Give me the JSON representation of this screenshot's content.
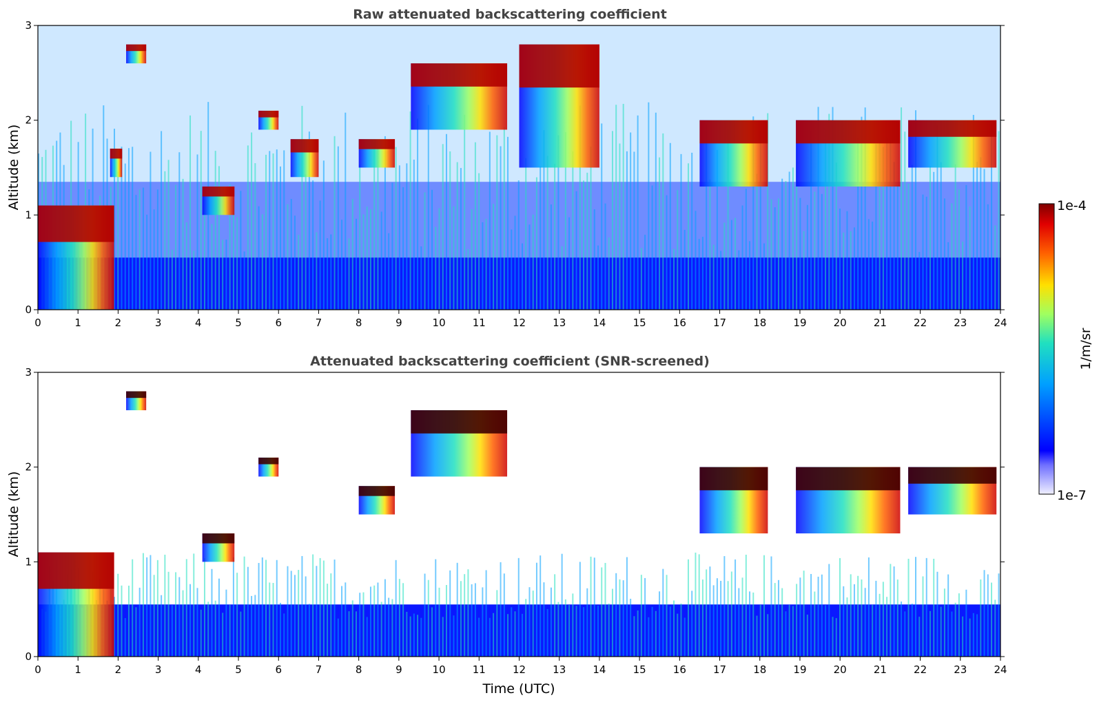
{
  "chart_data": [
    {
      "type": "heatmap",
      "title": "Raw attenuated backscattering coefficient",
      "ylabel": "Altitude (km)",
      "xlim": [
        0,
        24
      ],
      "ylim": [
        0,
        3
      ],
      "xticks": [
        "0",
        "1",
        "2",
        "3",
        "4",
        "5",
        "6",
        "7",
        "8",
        "9",
        "10",
        "11",
        "12",
        "13",
        "14",
        "15",
        "16",
        "17",
        "18",
        "19",
        "20",
        "21",
        "22",
        "23",
        "24"
      ],
      "yticks": [
        "0",
        "1",
        "2",
        "3"
      ],
      "screened": false,
      "cloud_layers": [
        {
          "x": [
            0.0,
            1.9
          ],
          "base_km": 0.0,
          "top_km": 1.1,
          "level": "high"
        },
        {
          "x": [
            1.8,
            2.1
          ],
          "base_km": 1.4,
          "top_km": 1.7,
          "level": "high"
        },
        {
          "x": [
            2.2,
            2.7
          ],
          "base_km": 2.6,
          "top_km": 2.8,
          "level": "high"
        },
        {
          "x": [
            4.1,
            4.9
          ],
          "base_km": 1.0,
          "top_km": 1.3,
          "level": "high"
        },
        {
          "x": [
            5.5,
            6.0
          ],
          "base_km": 1.9,
          "top_km": 2.1,
          "level": "high"
        },
        {
          "x": [
            6.3,
            7.0
          ],
          "base_km": 1.4,
          "top_km": 1.8,
          "level": "high"
        },
        {
          "x": [
            8.0,
            8.9
          ],
          "base_km": 1.5,
          "top_km": 1.8,
          "level": "high"
        },
        {
          "x": [
            9.3,
            11.7
          ],
          "base_km": 1.9,
          "top_km": 2.6,
          "level": "high"
        },
        {
          "x": [
            12.0,
            14.0
          ],
          "base_km": 1.5,
          "top_km": 2.8,
          "level": "high"
        },
        {
          "x": [
            16.5,
            18.2
          ],
          "base_km": 1.3,
          "top_km": 2.0,
          "level": "high"
        },
        {
          "x": [
            18.9,
            21.5
          ],
          "base_km": 1.3,
          "top_km": 2.0,
          "level": "high"
        },
        {
          "x": [
            21.7,
            23.9
          ],
          "base_km": 1.5,
          "top_km": 2.0,
          "level": "high"
        }
      ]
    },
    {
      "type": "heatmap",
      "title": "Attenuated backscattering coefficient (SNR-screened)",
      "xlabel": "Time (UTC)",
      "ylabel": "Altitude (km)",
      "xlim": [
        0,
        24
      ],
      "ylim": [
        0,
        3
      ],
      "xticks": [
        "0",
        "1",
        "2",
        "3",
        "4",
        "5",
        "6",
        "7",
        "8",
        "9",
        "10",
        "11",
        "12",
        "13",
        "14",
        "15",
        "16",
        "17",
        "18",
        "19",
        "20",
        "21",
        "22",
        "23",
        "24"
      ],
      "yticks": [
        "0",
        "1",
        "2",
        "3"
      ],
      "screened": true,
      "cloud_layers": [
        {
          "x": [
            0.0,
            1.9
          ],
          "base_km": 0.0,
          "top_km": 1.1,
          "level": "high"
        },
        {
          "x": [
            2.2,
            2.7
          ],
          "base_km": 2.6,
          "top_km": 2.8,
          "level": "max"
        },
        {
          "x": [
            4.1,
            4.9
          ],
          "base_km": 1.0,
          "top_km": 1.3,
          "level": "max"
        },
        {
          "x": [
            5.5,
            6.0
          ],
          "base_km": 1.9,
          "top_km": 2.1,
          "level": "max"
        },
        {
          "x": [
            8.0,
            8.9
          ],
          "base_km": 1.5,
          "top_km": 1.8,
          "level": "max"
        },
        {
          "x": [
            9.3,
            11.7
          ],
          "base_km": 1.9,
          "top_km": 2.6,
          "level": "max"
        },
        {
          "x": [
            16.5,
            18.2
          ],
          "base_km": 1.3,
          "top_km": 2.0,
          "level": "max"
        },
        {
          "x": [
            18.9,
            21.5
          ],
          "base_km": 1.3,
          "top_km": 2.0,
          "level": "max"
        },
        {
          "x": [
            21.7,
            23.9
          ],
          "base_km": 1.5,
          "top_km": 2.0,
          "level": "max"
        }
      ]
    }
  ],
  "colorbar": {
    "label": "1/m/sr",
    "max_label": "1e-4",
    "min_label": "1e-7",
    "scale": "log",
    "range": [
      1e-07,
      0.0001
    ],
    "colormap": [
      "#f0f0ff",
      "#0000ff",
      "#00a0ff",
      "#20e0c0",
      "#a0ff60",
      "#ffe000",
      "#ff6000",
      "#e00000",
      "#800000"
    ]
  }
}
